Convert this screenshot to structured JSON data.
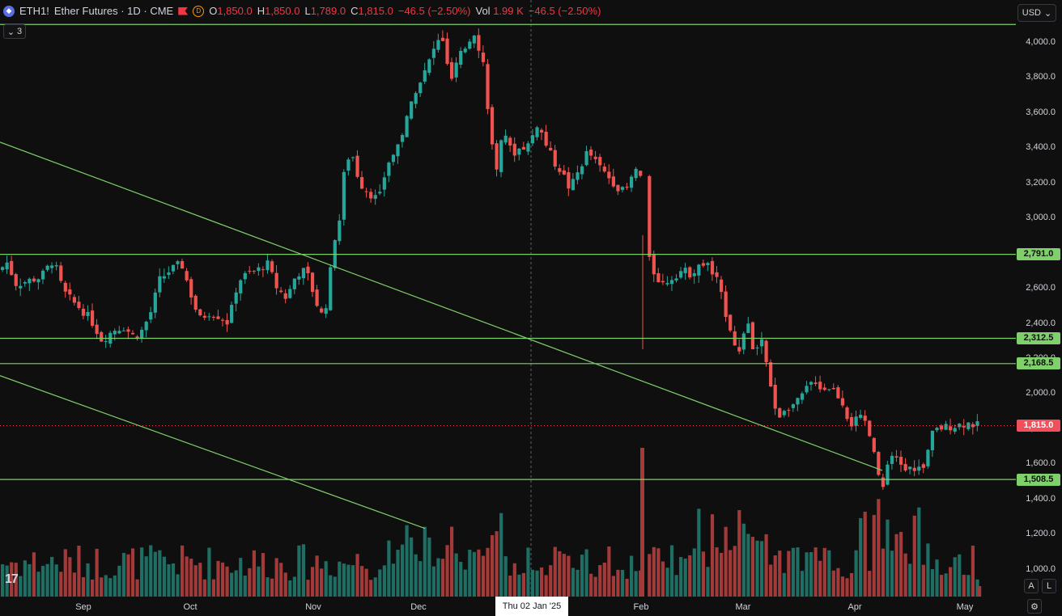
{
  "legend": {
    "symbol": "ETH1!",
    "description": "Ether Futures · 1D · CME",
    "delayed_badge": "D",
    "open_label": "O",
    "open": "1,850.0",
    "high_label": "H",
    "high": "1,850.0",
    "low_label": "L",
    "low": "1,789.0",
    "close_label": "C",
    "close": "1,815.0",
    "change": "−46.5 (−2.50%)",
    "vol_label": "Vol",
    "vol": "1.99 K",
    "vol_change": "−46.5 (−2.50%)",
    "indicator_count": "3"
  },
  "currency": "USD",
  "crosshair_date": "Thu 02 Jan '25",
  "axis_buttons": {
    "auto": "A",
    "log": "L"
  },
  "logo": "17",
  "colors": {
    "up": "#26a69a",
    "down": "#ef5350",
    "level": "#7fd06b",
    "last": "#f04f5b"
  },
  "chart_data": {
    "type": "candlestick",
    "symbol": "ETH1!",
    "timeframe": "1D",
    "ylim": [
      1050,
      4150
    ],
    "price_ticks": [
      "4,000.0",
      "3,800.0",
      "3,600.0",
      "3,400.0",
      "3,200.0",
      "3,000.0",
      "2,800.0",
      "2,600.0",
      "2,400.0",
      "2,200.0",
      "2,000.0",
      "1,800.0",
      "1,600.0",
      "1,400.0",
      "1,200.0",
      "1,000.0"
    ],
    "time_ticks": [
      "Sep",
      "Oct",
      "Nov",
      "Dec",
      "Feb",
      "Mar",
      "Apr",
      "May"
    ],
    "levels": [
      {
        "value": 4100,
        "label": ""
      },
      {
        "value": 2791.0,
        "label": "2,791.0"
      },
      {
        "value": 2312.5,
        "label": "2,312.5"
      },
      {
        "value": 2168.5,
        "label": "2,168.5"
      },
      {
        "value": 1508.5,
        "label": "1,508.5"
      }
    ],
    "last_price": {
      "value": 1815.0,
      "label": "1,815.0"
    },
    "close_path": [
      [
        0,
        2700
      ],
      [
        8,
        2750
      ],
      [
        20,
        2620
      ],
      [
        34,
        2640
      ],
      [
        50,
        2660
      ],
      [
        66,
        2760
      ],
      [
        78,
        2580
      ],
      [
        90,
        2520
      ],
      [
        100,
        2480
      ],
      [
        112,
        2420
      ],
      [
        126,
        2300
      ],
      [
        140,
        2360
      ],
      [
        152,
        2380
      ],
      [
        166,
        2320
      ],
      [
        176,
        2360
      ],
      [
        188,
        2480
      ],
      [
        196,
        2640
      ],
      [
        210,
        2700
      ],
      [
        224,
        2740
      ],
      [
        236,
        2560
      ],
      [
        246,
        2420
      ],
      [
        258,
        2460
      ],
      [
        270,
        2440
      ],
      [
        282,
        2400
      ],
      [
        294,
        2640
      ],
      [
        306,
        2680
      ],
      [
        318,
        2700
      ],
      [
        330,
        2740
      ],
      [
        342,
        2600
      ],
      [
        354,
        2540
      ],
      [
        366,
        2680
      ],
      [
        378,
        2700
      ],
      [
        392,
        2500
      ],
      [
        400,
        2420
      ],
      [
        406,
        2620
      ],
      [
        414,
        2900
      ],
      [
        420,
        3000
      ],
      [
        426,
        3300
      ],
      [
        434,
        3380
      ],
      [
        444,
        3200
      ],
      [
        456,
        3140
      ],
      [
        468,
        3100
      ],
      [
        478,
        3300
      ],
      [
        490,
        3400
      ],
      [
        500,
        3520
      ],
      [
        512,
        3720
      ],
      [
        526,
        3840
      ],
      [
        536,
        3960
      ],
      [
        546,
        4040
      ],
      [
        556,
        3760
      ],
      [
        566,
        3900
      ],
      [
        576,
        3980
      ],
      [
        586,
        4060
      ],
      [
        598,
        3860
      ],
      [
        606,
        3460
      ],
      [
        614,
        3240
      ],
      [
        622,
        3520
      ],
      [
        632,
        3360
      ],
      [
        644,
        3400
      ],
      [
        654,
        3420
      ],
      [
        664,
        3540
      ],
      [
        674,
        3420
      ],
      [
        684,
        3320
      ],
      [
        694,
        3260
      ],
      [
        704,
        3160
      ],
      [
        714,
        3260
      ],
      [
        726,
        3380
      ],
      [
        738,
        3300
      ],
      [
        750,
        3240
      ],
      [
        762,
        3180
      ],
      [
        772,
        3140
      ],
      [
        782,
        3240
      ],
      [
        790,
        3320
      ],
      [
        796,
        2840
      ],
      [
        806,
        2700
      ],
      [
        818,
        2620
      ],
      [
        830,
        2660
      ],
      [
        842,
        2700
      ],
      [
        854,
        2680
      ],
      [
        864,
        2740
      ],
      [
        876,
        2720
      ],
      [
        886,
        2640
      ],
      [
        894,
        2500
      ],
      [
        904,
        2340
      ],
      [
        914,
        2220
      ],
      [
        922,
        2420
      ],
      [
        932,
        2220
      ],
      [
        942,
        2300
      ],
      [
        950,
        2060
      ],
      [
        960,
        1860
      ],
      [
        970,
        1920
      ],
      [
        984,
        1940
      ],
      [
        996,
        2020
      ],
      [
        1006,
        2080
      ],
      [
        1016,
        2020
      ],
      [
        1026,
        2040
      ],
      [
        1040,
        1960
      ],
      [
        1050,
        1820
      ],
      [
        1062,
        1860
      ],
      [
        1072,
        1800
      ],
      [
        1082,
        1600
      ],
      [
        1090,
        1440
      ],
      [
        1098,
        1620
      ],
      [
        1108,
        1620
      ],
      [
        1120,
        1560
      ],
      [
        1132,
        1580
      ],
      [
        1142,
        1560
      ],
      [
        1150,
        1760
      ],
      [
        1160,
        1800
      ],
      [
        1172,
        1810
      ],
      [
        1184,
        1820
      ],
      [
        1196,
        1830
      ],
      [
        1208,
        1815
      ]
    ],
    "trendlines": [
      {
        "from": [
          0,
          3430
        ],
        "to": [
          1090,
          1560
        ]
      },
      {
        "from": [
          0,
          2100
        ],
        "to": [
          525,
          1230
        ]
      }
    ],
    "volume_max": "unlabeled"
  }
}
